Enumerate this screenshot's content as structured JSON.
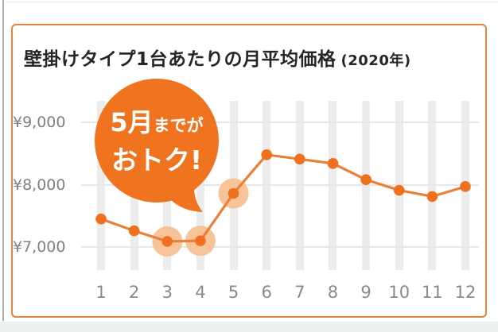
{
  "card": {
    "title": "壁掛けタイプ1台あたりの月平均価格",
    "title_suffix": "(2020年)"
  },
  "bubble": {
    "line1_big": "5月",
    "line1_small": "までが",
    "line2": "おトク!"
  },
  "chart_data": {
    "type": "line",
    "title": "壁掛けタイプ1台あたりの月平均価格 (2020年)",
    "categories": [
      "1",
      "2",
      "3",
      "4",
      "5",
      "6",
      "7",
      "8",
      "9",
      "10",
      "11",
      "12"
    ],
    "values": [
      7450,
      7260,
      7090,
      7100,
      7860,
      8480,
      8410,
      8340,
      8080,
      7910,
      7810,
      7970
    ],
    "unit": "円",
    "yticks": [
      {
        "value": 9000,
        "label": "¥9,000"
      },
      {
        "value": 8000,
        "label": "¥8,000"
      },
      {
        "value": 7000,
        "label": "¥7,000"
      }
    ],
    "ylim": [
      6650,
      9400
    ],
    "highlighted_categories": [
      "3",
      "4",
      "5"
    ],
    "annotation": "5月までがおトク!",
    "legend": "none",
    "grid": "horizontal",
    "colors": {
      "line": "#ea8038",
      "point": "#ef7120",
      "highlight": "#f7c49a",
      "bubble": "#f0741f",
      "bubble_text": "#ffffff",
      "card_border": "#e0843f",
      "column_bar": "#ececec"
    }
  }
}
